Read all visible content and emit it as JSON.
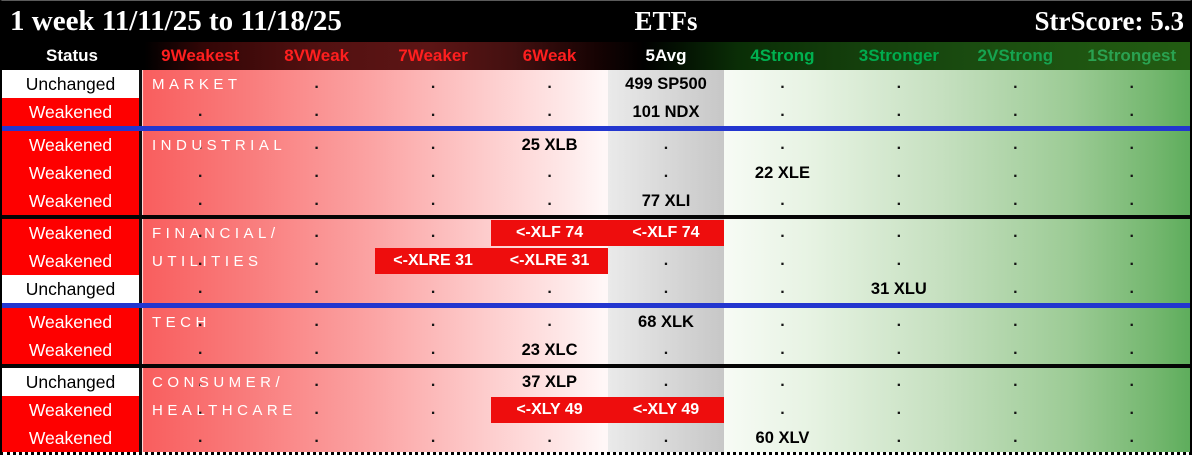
{
  "titlebar": {
    "period": "1 week 11/11/25 to 11/18/25",
    "center": "ETFs",
    "score": "StrScore: 5.3"
  },
  "header": {
    "status_label": "Status",
    "columns": [
      {
        "label": "9Weakest",
        "color": "#ff1f1f"
      },
      {
        "label": "8VWeak",
        "color": "#ff1f1f"
      },
      {
        "label": "7Weaker",
        "color": "#ff1f1f"
      },
      {
        "label": "6Weak",
        "color": "#ff1f1f"
      },
      {
        "label": "5Avg",
        "color": "#ffffff"
      },
      {
        "label": "4Strong",
        "color": "#00b150"
      },
      {
        "label": "3Stronger",
        "color": "#00ab4e"
      },
      {
        "label": "2VStrong",
        "color": "#16a350"
      },
      {
        "label": "1Strongest",
        "color": "#2aa251"
      }
    ]
  },
  "colors": {
    "weakened_bg": "#fe0000",
    "unchanged_bg": "#ffffff",
    "callout_bg": "#ee0d0d",
    "separator_blue": "#2336cf",
    "separator_black": "#050505"
  },
  "rows": [
    {
      "status": "Unchanged",
      "kind": "unchanged",
      "label": "MARKET",
      "cells": [
        {
          "t": "empty"
        },
        {
          "t": "dot"
        },
        {
          "t": "dot"
        },
        {
          "t": "dot"
        },
        {
          "t": "text",
          "v": "499 SP500"
        },
        {
          "t": "dot"
        },
        {
          "t": "dot"
        },
        {
          "t": "dot"
        },
        {
          "t": "dot"
        }
      ],
      "sep": null
    },
    {
      "status": "Weakened",
      "kind": "weakened",
      "label": null,
      "cells": [
        {
          "t": "dot"
        },
        {
          "t": "dot"
        },
        {
          "t": "dot"
        },
        {
          "t": "dot"
        },
        {
          "t": "text",
          "v": "101 NDX"
        },
        {
          "t": "dot"
        },
        {
          "t": "dot"
        },
        {
          "t": "dot"
        },
        {
          "t": "dot"
        }
      ],
      "sep": "blue"
    },
    {
      "status": "Weakened",
      "kind": "weakened",
      "label": "INDUSTRIAL",
      "cells": [
        {
          "t": "dot"
        },
        {
          "t": "dot"
        },
        {
          "t": "dot"
        },
        {
          "t": "text",
          "v": "25 XLB"
        },
        {
          "t": "dot"
        },
        {
          "t": "dot"
        },
        {
          "t": "dot"
        },
        {
          "t": "dot"
        },
        {
          "t": "dot"
        }
      ],
      "sep": null
    },
    {
      "status": "Weakened",
      "kind": "weakened",
      "label": null,
      "cells": [
        {
          "t": "dot"
        },
        {
          "t": "dot"
        },
        {
          "t": "dot"
        },
        {
          "t": "dot"
        },
        {
          "t": "dot"
        },
        {
          "t": "text",
          "v": "22 XLE"
        },
        {
          "t": "dot"
        },
        {
          "t": "dot"
        },
        {
          "t": "dot"
        }
      ],
      "sep": null
    },
    {
      "status": "Weakened",
      "kind": "weakened",
      "label": null,
      "cells": [
        {
          "t": "dot"
        },
        {
          "t": "dot"
        },
        {
          "t": "dot"
        },
        {
          "t": "dot"
        },
        {
          "t": "text",
          "v": "77 XLI"
        },
        {
          "t": "dot"
        },
        {
          "t": "dot"
        },
        {
          "t": "dot"
        },
        {
          "t": "dot"
        }
      ],
      "sep": "black"
    },
    {
      "status": "Weakened",
      "kind": "weakened",
      "label": "FINANCIAL/",
      "cells": [
        {
          "t": "dot"
        },
        {
          "t": "dot"
        },
        {
          "t": "dot"
        },
        {
          "t": "box",
          "v": "<-XLF 74"
        },
        {
          "t": "box",
          "v": "<-XLF 74"
        },
        {
          "t": "dot"
        },
        {
          "t": "dot"
        },
        {
          "t": "dot"
        },
        {
          "t": "dot"
        }
      ],
      "sep": null
    },
    {
      "status": "Weakened",
      "kind": "weakened",
      "label": "UTILITIES",
      "cells": [
        {
          "t": "dot"
        },
        {
          "t": "dot"
        },
        {
          "t": "box",
          "v": "<-XLRE 31"
        },
        {
          "t": "box",
          "v": "<-XLRE 31"
        },
        {
          "t": "dot"
        },
        {
          "t": "dot"
        },
        {
          "t": "dot"
        },
        {
          "t": "dot"
        },
        {
          "t": "dot"
        }
      ],
      "sep": null
    },
    {
      "status": "Unchanged",
      "kind": "unchanged",
      "label": null,
      "cells": [
        {
          "t": "dot"
        },
        {
          "t": "dot"
        },
        {
          "t": "dot"
        },
        {
          "t": "dot"
        },
        {
          "t": "dot"
        },
        {
          "t": "dot"
        },
        {
          "t": "text",
          "v": "31 XLU"
        },
        {
          "t": "dot"
        },
        {
          "t": "dot"
        }
      ],
      "sep": "blue"
    },
    {
      "status": "Weakened",
      "kind": "weakened",
      "label": "TECH",
      "cells": [
        {
          "t": "dot"
        },
        {
          "t": "dot"
        },
        {
          "t": "dot"
        },
        {
          "t": "dot"
        },
        {
          "t": "text",
          "v": "68 XLK"
        },
        {
          "t": "dot"
        },
        {
          "t": "dot"
        },
        {
          "t": "dot"
        },
        {
          "t": "dot"
        }
      ],
      "sep": null
    },
    {
      "status": "Weakened",
      "kind": "weakened",
      "label": null,
      "cells": [
        {
          "t": "dot"
        },
        {
          "t": "dot"
        },
        {
          "t": "dot"
        },
        {
          "t": "text",
          "v": "23 XLC"
        },
        {
          "t": "dot"
        },
        {
          "t": "dot"
        },
        {
          "t": "dot"
        },
        {
          "t": "dot"
        },
        {
          "t": "dot"
        }
      ],
      "sep": "black"
    },
    {
      "status": "Unchanged",
      "kind": "unchanged",
      "label": "CONSUMER/",
      "cells": [
        {
          "t": "dot"
        },
        {
          "t": "dot"
        },
        {
          "t": "dot"
        },
        {
          "t": "text",
          "v": "37 XLP"
        },
        {
          "t": "dot"
        },
        {
          "t": "dot"
        },
        {
          "t": "dot"
        },
        {
          "t": "dot"
        },
        {
          "t": "dot"
        }
      ],
      "sep": null
    },
    {
      "status": "Weakened",
      "kind": "weakened",
      "label": "HEALTHCARE",
      "cells": [
        {
          "t": "dot"
        },
        {
          "t": "dot"
        },
        {
          "t": "dot"
        },
        {
          "t": "box",
          "v": "<-XLY 49"
        },
        {
          "t": "box",
          "v": "<-XLY 49"
        },
        {
          "t": "dot"
        },
        {
          "t": "dot"
        },
        {
          "t": "dot"
        },
        {
          "t": "dot"
        }
      ],
      "sep": null
    },
    {
      "status": "Weakened",
      "kind": "weakened",
      "label": null,
      "cells": [
        {
          "t": "dot"
        },
        {
          "t": "dot"
        },
        {
          "t": "dot"
        },
        {
          "t": "dot"
        },
        {
          "t": "dot"
        },
        {
          "t": "text",
          "v": "60 XLV"
        },
        {
          "t": "dot"
        },
        {
          "t": "dot"
        },
        {
          "t": "dot"
        }
      ],
      "sep": null
    }
  ]
}
